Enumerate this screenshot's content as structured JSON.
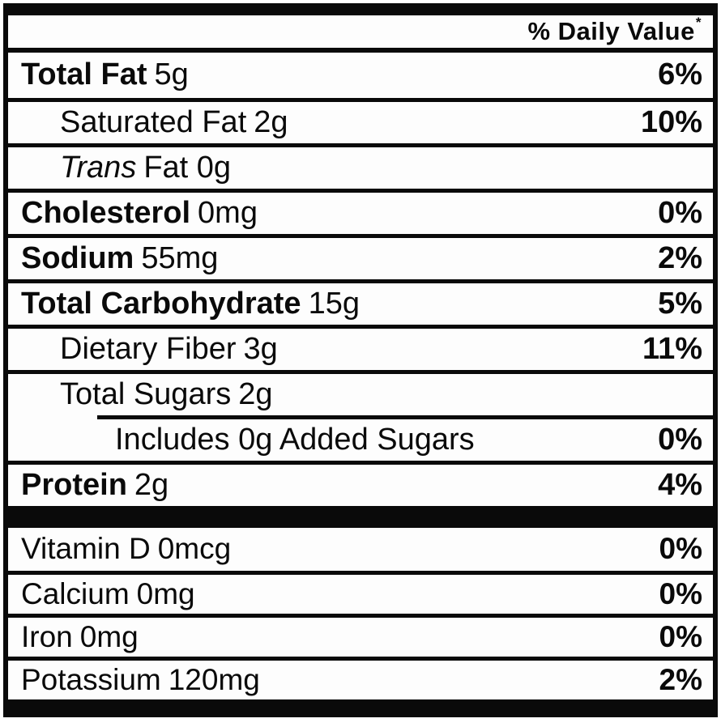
{
  "label": {
    "header": {
      "daily_value_label": "% Daily Value",
      "asterisk": "*"
    },
    "rows": [
      {
        "name": "Total Fat",
        "amount": "5g",
        "dv": "6%"
      },
      {
        "name": "Saturated Fat",
        "amount": "2g",
        "dv": "10%"
      },
      {
        "name": "Trans",
        "amount": "Fat 0g",
        "dv": ""
      },
      {
        "name": "Cholesterol",
        "amount": "0mg",
        "dv": "0%"
      },
      {
        "name": "Sodium",
        "amount": "55mg",
        "dv": "2%"
      },
      {
        "name": "Total Carbohydrate",
        "amount": "15g",
        "dv": "5%"
      },
      {
        "name": "Dietary Fiber",
        "amount": "3g",
        "dv": "11%"
      },
      {
        "name": "Total Sugars",
        "amount": "2g",
        "dv": ""
      },
      {
        "name": "Includes 0g Added Sugars",
        "amount": "",
        "dv": "0%"
      },
      {
        "name": "Protein",
        "amount": "2g",
        "dv": "4%"
      }
    ],
    "micronutrients": [
      {
        "name": "Vitamin D",
        "amount": "0mcg",
        "dv": "0%"
      },
      {
        "name": "Calcium",
        "amount": "0mg",
        "dv": "0%"
      },
      {
        "name": "Iron",
        "amount": "0mg",
        "dv": "0%"
      },
      {
        "name": "Potassium",
        "amount": "120mg",
        "dv": "2%"
      }
    ],
    "colors": {
      "text": "#0a0a0a",
      "background": "#fdfdfd"
    }
  }
}
